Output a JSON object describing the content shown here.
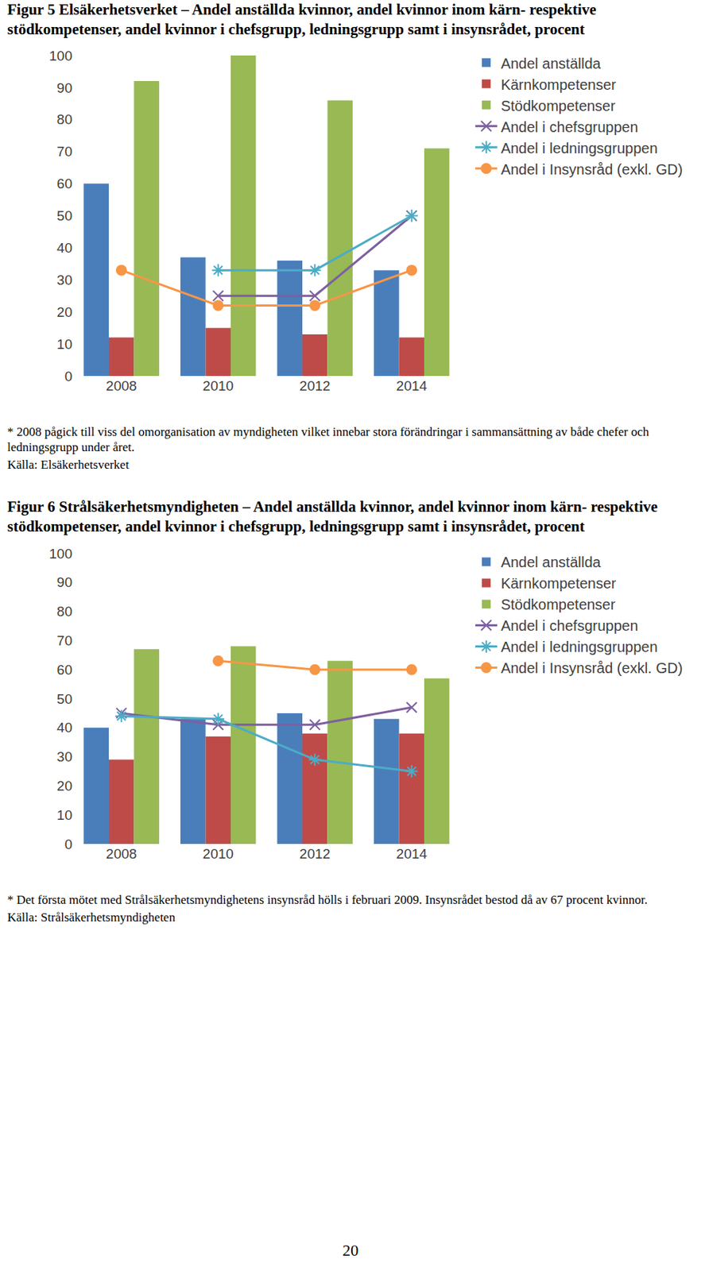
{
  "chart_data": [
    {
      "type": "bar",
      "title": "Figur 5 Elsäkerhetsverket – Andel anställda kvinnor, andel kvinnor inom kärn- respektive stödkompetenser, andel kvinnor i chefsgrupp, ledningsgrupp samt i insynsrådet, procent",
      "footnote": "* 2008 pågick till viss del omorganisation av myndigheten vilket innebar stora förändringar i sammansättning av både chefer och ledningsgrupp under året.",
      "source": "Källa: Elsäkerhetsverket",
      "categories": [
        "2008",
        "2010",
        "2012",
        "2014"
      ],
      "series": [
        {
          "name": "Andel anställda",
          "type": "bar",
          "color": "#4a7ebb",
          "values": [
            60,
            37,
            36,
            33
          ]
        },
        {
          "name": "Kärnkompetenser",
          "type": "bar",
          "color": "#be4b48",
          "values": [
            12,
            15,
            13,
            12
          ]
        },
        {
          "name": "Stödkompetenser",
          "type": "bar",
          "color": "#98b954",
          "values": [
            92,
            100,
            86,
            71
          ]
        },
        {
          "name": "Andel i chefsgruppen",
          "type": "line",
          "marker": "x",
          "color": "#7d60a0",
          "values": [
            null,
            25,
            25,
            50
          ]
        },
        {
          "name": "Andel i ledningsgruppen",
          "type": "line",
          "marker": "asterisk",
          "color": "#4bacc6",
          "values": [
            null,
            33,
            33,
            50
          ]
        },
        {
          "name": "Andel i Insynsråd (exkl. GD)",
          "type": "line",
          "marker": "circle",
          "color": "#f79646",
          "values": [
            33,
            22,
            22,
            33
          ]
        }
      ],
      "ylim": [
        0,
        100
      ],
      "yticks": [
        0,
        10,
        20,
        30,
        40,
        50,
        60,
        70,
        80,
        90,
        100
      ],
      "grid": false,
      "legend": "right"
    },
    {
      "type": "bar",
      "title": "Figur 6 Strålsäkerhetsmyndigheten – Andel anställda kvinnor, andel kvinnor inom kärn- respektive stödkompetenser, andel kvinnor i chefsgrupp, ledningsgrupp samt i insynsrådet, procent",
      "footnote": "* Det första mötet med Strålsäkerhetsmyndighetens insynsråd hölls i februari 2009. Insynsrådet bestod då av 67 procent kvinnor.",
      "source": "Källa: Strålsäkerhetsmyndigheten",
      "categories": [
        "2008",
        "2010",
        "2012",
        "2014"
      ],
      "series": [
        {
          "name": "Andel anställda",
          "type": "bar",
          "color": "#4a7ebb",
          "values": [
            40,
            43,
            45,
            43
          ]
        },
        {
          "name": "Kärnkompetenser",
          "type": "bar",
          "color": "#be4b48",
          "values": [
            29,
            37,
            38,
            38
          ]
        },
        {
          "name": "Stödkompetenser",
          "type": "bar",
          "color": "#98b954",
          "values": [
            67,
            68,
            63,
            57
          ]
        },
        {
          "name": "Andel i chefsgruppen",
          "type": "line",
          "marker": "x",
          "color": "#7d60a0",
          "values": [
            45,
            41,
            41,
            47
          ]
        },
        {
          "name": "Andel i ledningsgruppen",
          "type": "line",
          "marker": "asterisk",
          "color": "#4bacc6",
          "values": [
            44,
            43,
            29,
            25
          ]
        },
        {
          "name": "Andel i Insynsråd (exkl. GD)",
          "type": "line",
          "marker": "circle",
          "color": "#f79646",
          "values": [
            null,
            63,
            60,
            60
          ]
        }
      ],
      "ylim": [
        0,
        100
      ],
      "yticks": [
        0,
        10,
        20,
        30,
        40,
        50,
        60,
        70,
        80,
        90,
        100
      ],
      "grid": false,
      "legend": "right"
    }
  ],
  "page_number": "20"
}
